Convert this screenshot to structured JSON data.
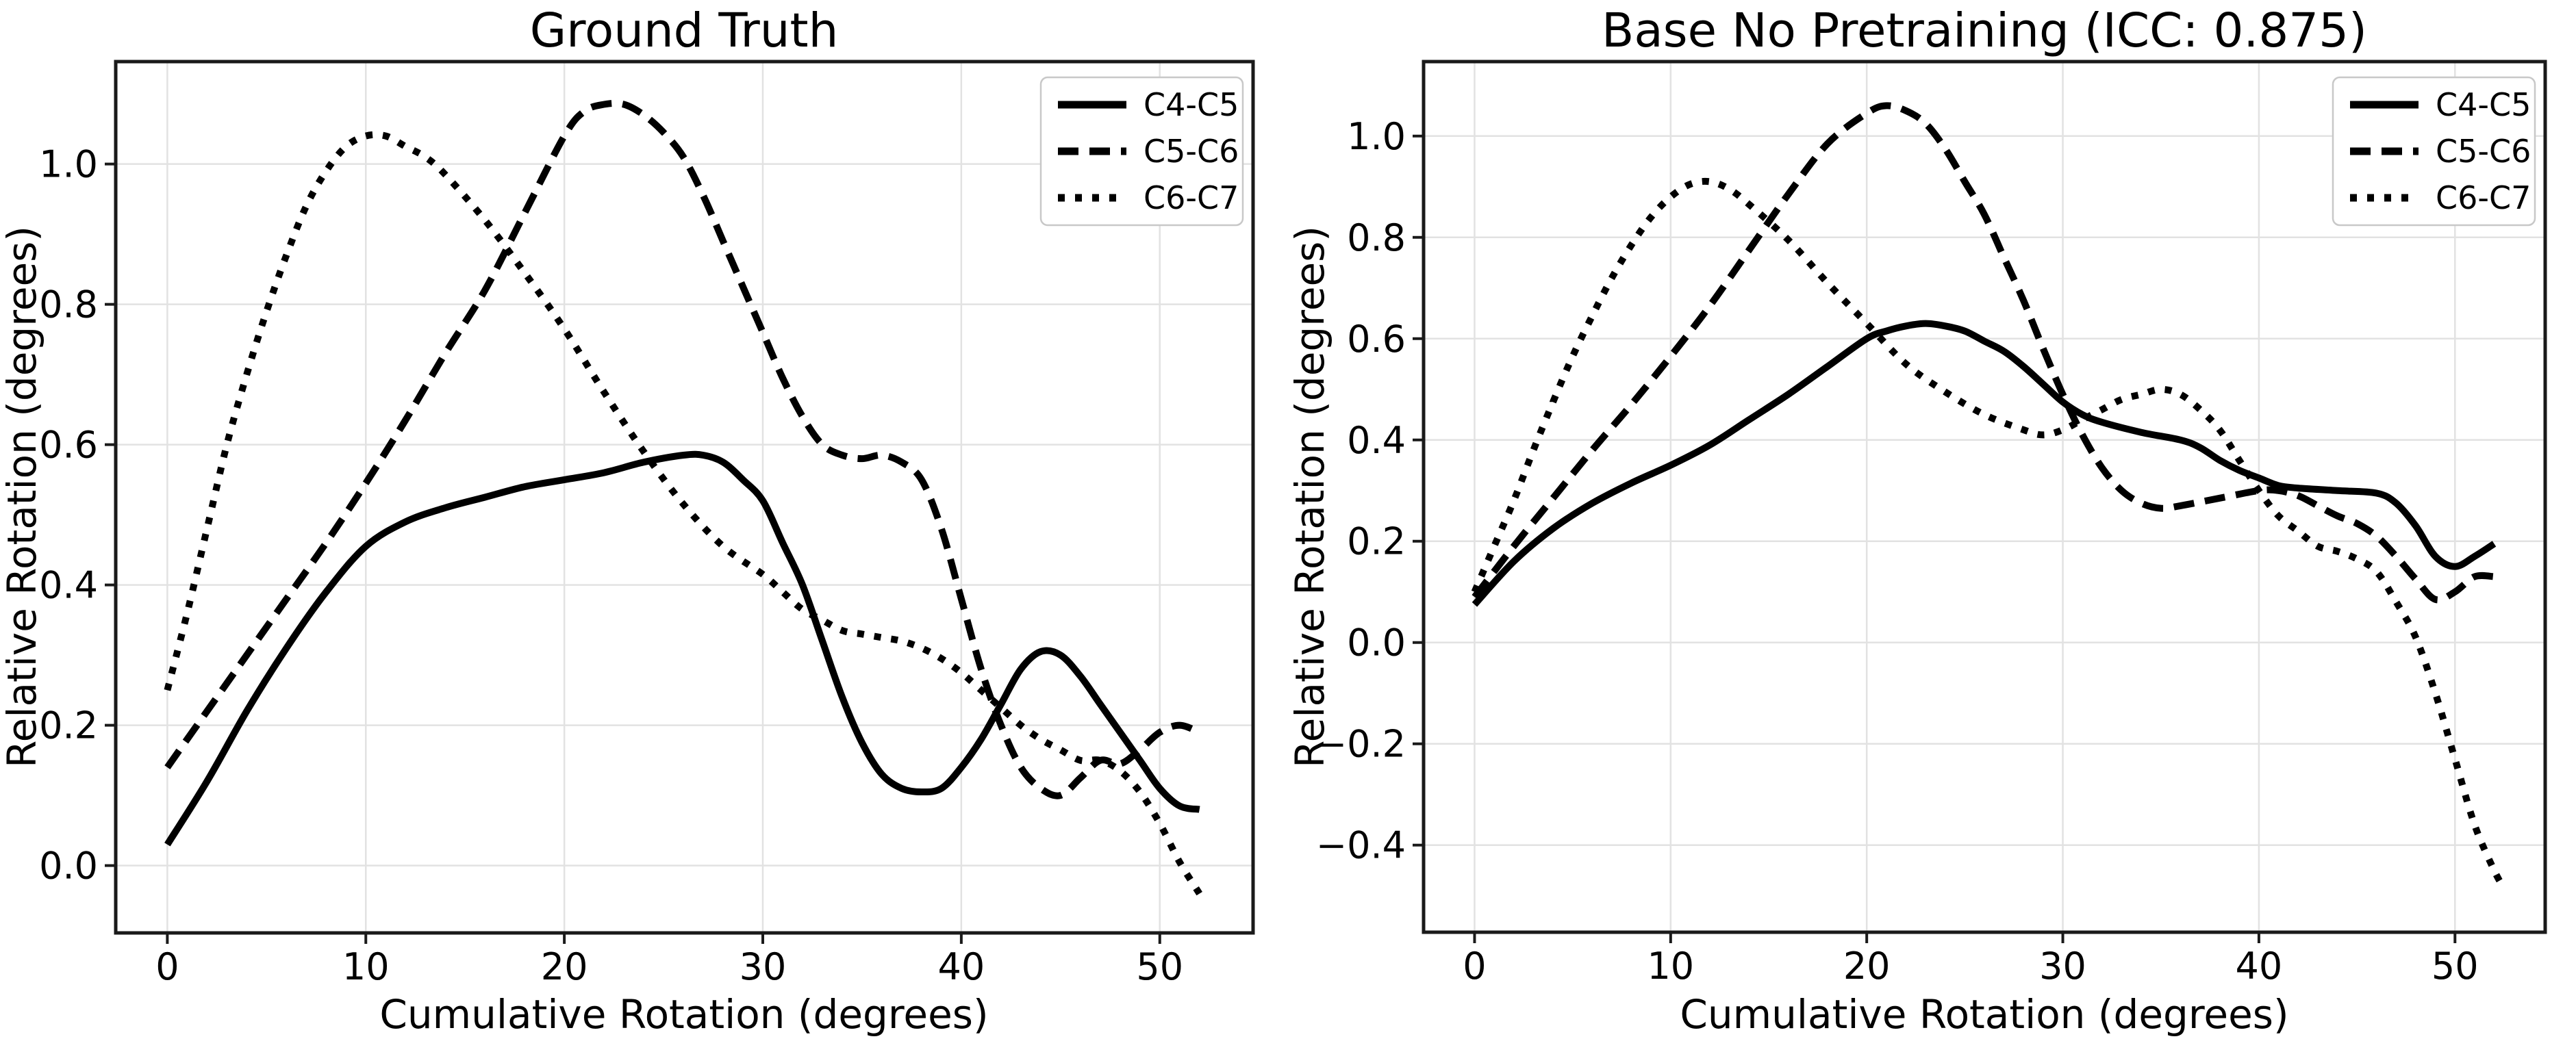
{
  "figure": {
    "background": "#ffffff",
    "text_color": "#000000",
    "grid_color": "#e2e2e2",
    "spine_color": "#1a1a1a",
    "line_color": "#000000"
  },
  "chart_data": [
    {
      "type": "line",
      "title": "Ground Truth",
      "xlabel": "Cumulative Rotation (degrees)",
      "ylabel": "Relative Rotation (degrees)",
      "xlim": [
        -2.6,
        54.7
      ],
      "ylim": [
        -0.096,
        1.146
      ],
      "xticks": [
        0,
        10,
        20,
        30,
        40,
        50
      ],
      "yticks": [
        0.0,
        0.2,
        0.4,
        0.6,
        0.8,
        1.0
      ],
      "grid": true,
      "legend_position": "upper right",
      "series": [
        {
          "name": "C4-C5",
          "linestyle": "solid",
          "points": [
            [
              0,
              0.03
            ],
            [
              2,
              0.12
            ],
            [
              4,
              0.22
            ],
            [
              6,
              0.31
            ],
            [
              8,
              0.39
            ],
            [
              10,
              0.455
            ],
            [
              12,
              0.49
            ],
            [
              14,
              0.51
            ],
            [
              16,
              0.525
            ],
            [
              18,
              0.54
            ],
            [
              20,
              0.55
            ],
            [
              22,
              0.56
            ],
            [
              24,
              0.575
            ],
            [
              26,
              0.585
            ],
            [
              27,
              0.585
            ],
            [
              28,
              0.575
            ],
            [
              29,
              0.55
            ],
            [
              30,
              0.52
            ],
            [
              31,
              0.46
            ],
            [
              32,
              0.4
            ],
            [
              33,
              0.32
            ],
            [
              34,
              0.24
            ],
            [
              35,
              0.175
            ],
            [
              36,
              0.13
            ],
            [
              37,
              0.11
            ],
            [
              38,
              0.105
            ],
            [
              39,
              0.11
            ],
            [
              40,
              0.14
            ],
            [
              41,
              0.18
            ],
            [
              42,
              0.23
            ],
            [
              43,
              0.28
            ],
            [
              44,
              0.305
            ],
            [
              45,
              0.3
            ],
            [
              46,
              0.27
            ],
            [
              47,
              0.23
            ],
            [
              48,
              0.19
            ],
            [
              49,
              0.15
            ],
            [
              50,
              0.11
            ],
            [
              51,
              0.085
            ],
            [
              52,
              0.08
            ]
          ]
        },
        {
          "name": "C5-C6",
          "linestyle": "dashed",
          "points": [
            [
              0,
              0.14
            ],
            [
              2,
              0.22
            ],
            [
              4,
              0.3
            ],
            [
              6,
              0.38
            ],
            [
              8,
              0.46
            ],
            [
              10,
              0.545
            ],
            [
              12,
              0.635
            ],
            [
              14,
              0.73
            ],
            [
              16,
              0.82
            ],
            [
              18,
              0.93
            ],
            [
              20,
              1.04
            ],
            [
              21,
              1.075
            ],
            [
              22,
              1.085
            ],
            [
              23,
              1.085
            ],
            [
              24,
              1.07
            ],
            [
              25,
              1.045
            ],
            [
              26,
              1.01
            ],
            [
              27,
              0.955
            ],
            [
              28,
              0.89
            ],
            [
              29,
              0.825
            ],
            [
              30,
              0.76
            ],
            [
              31,
              0.695
            ],
            [
              32,
              0.64
            ],
            [
              33,
              0.6
            ],
            [
              34,
              0.585
            ],
            [
              35,
              0.58
            ],
            [
              36,
              0.585
            ],
            [
              37,
              0.575
            ],
            [
              38,
              0.55
            ],
            [
              39,
              0.48
            ],
            [
              40,
              0.38
            ],
            [
              41,
              0.28
            ],
            [
              42,
              0.2
            ],
            [
              43,
              0.14
            ],
            [
              44,
              0.11
            ],
            [
              45,
              0.1
            ],
            [
              46,
              0.125
            ],
            [
              47,
              0.15
            ],
            [
              48,
              0.145
            ],
            [
              49,
              0.165
            ],
            [
              50,
              0.19
            ],
            [
              51,
              0.2
            ],
            [
              52,
              0.19
            ]
          ]
        },
        {
          "name": "C6-C7",
          "linestyle": "dotted",
          "points": [
            [
              0,
              0.25
            ],
            [
              1,
              0.36
            ],
            [
              2,
              0.48
            ],
            [
              3,
              0.6
            ],
            [
              4,
              0.7
            ],
            [
              5,
              0.79
            ],
            [
              6,
              0.87
            ],
            [
              7,
              0.94
            ],
            [
              8,
              0.99
            ],
            [
              9,
              1.025
            ],
            [
              10,
              1.04
            ],
            [
              11,
              1.04
            ],
            [
              12,
              1.025
            ],
            [
              13,
              1.01
            ],
            [
              14,
              0.985
            ],
            [
              16,
              0.92
            ],
            [
              18,
              0.845
            ],
            [
              20,
              0.765
            ],
            [
              22,
              0.675
            ],
            [
              24,
              0.59
            ],
            [
              26,
              0.515
            ],
            [
              28,
              0.455
            ],
            [
              30,
              0.415
            ],
            [
              31,
              0.39
            ],
            [
              32,
              0.365
            ],
            [
              33,
              0.35
            ],
            [
              34,
              0.335
            ],
            [
              35,
              0.33
            ],
            [
              36,
              0.325
            ],
            [
              37,
              0.32
            ],
            [
              38,
              0.31
            ],
            [
              39,
              0.295
            ],
            [
              40,
              0.275
            ],
            [
              41,
              0.25
            ],
            [
              42,
              0.225
            ],
            [
              43,
              0.2
            ],
            [
              44,
              0.18
            ],
            [
              45,
              0.165
            ],
            [
              46,
              0.15
            ],
            [
              47,
              0.15
            ],
            [
              48,
              0.135
            ],
            [
              49,
              0.105
            ],
            [
              50,
              0.06
            ],
            [
              51,
              0.005
            ],
            [
              52,
              -0.04
            ]
          ]
        }
      ]
    },
    {
      "type": "line",
      "title": "Base No Pretraining (ICC: 0.875)",
      "xlabel": "Cumulative Rotation (degrees)",
      "ylabel": "Relative Rotation (degrees)",
      "xlim": [
        -2.6,
        54.6
      ],
      "ylim": [
        -0.572,
        1.147
      ],
      "xticks": [
        0,
        10,
        20,
        30,
        40,
        50
      ],
      "yticks": [
        -0.4,
        -0.2,
        0.0,
        0.2,
        0.4,
        0.6,
        0.8,
        1.0
      ],
      "grid": true,
      "legend_position": "upper right",
      "series": [
        {
          "name": "C4-C5",
          "linestyle": "solid",
          "points": [
            [
              0,
              0.075
            ],
            [
              2,
              0.16
            ],
            [
              4,
              0.225
            ],
            [
              6,
              0.275
            ],
            [
              8,
              0.315
            ],
            [
              10,
              0.35
            ],
            [
              12,
              0.39
            ],
            [
              14,
              0.44
            ],
            [
              16,
              0.49
            ],
            [
              18,
              0.545
            ],
            [
              20,
              0.6
            ],
            [
              21,
              0.615
            ],
            [
              22,
              0.625
            ],
            [
              23,
              0.63
            ],
            [
              24,
              0.625
            ],
            [
              25,
              0.615
            ],
            [
              26,
              0.595
            ],
            [
              27,
              0.575
            ],
            [
              28,
              0.545
            ],
            [
              29,
              0.51
            ],
            [
              30,
              0.475
            ],
            [
              31,
              0.45
            ],
            [
              32,
              0.435
            ],
            [
              34,
              0.415
            ],
            [
              36,
              0.4
            ],
            [
              37,
              0.385
            ],
            [
              38,
              0.36
            ],
            [
              39,
              0.34
            ],
            [
              40,
              0.325
            ],
            [
              41,
              0.31
            ],
            [
              42,
              0.305
            ],
            [
              44,
              0.3
            ],
            [
              46,
              0.295
            ],
            [
              47,
              0.275
            ],
            [
              48,
              0.23
            ],
            [
              49,
              0.17
            ],
            [
              50,
              0.15
            ],
            [
              51,
              0.17
            ],
            [
              52,
              0.195
            ]
          ]
        },
        {
          "name": "C5-C6",
          "linestyle": "dashed",
          "points": [
            [
              0,
              0.09
            ],
            [
              2,
              0.19
            ],
            [
              4,
              0.285
            ],
            [
              6,
              0.38
            ],
            [
              8,
              0.47
            ],
            [
              10,
              0.565
            ],
            [
              12,
              0.665
            ],
            [
              14,
              0.775
            ],
            [
              16,
              0.885
            ],
            [
              18,
              0.985
            ],
            [
              20,
              1.045
            ],
            [
              21,
              1.06
            ],
            [
              22,
              1.05
            ],
            [
              23,
              1.025
            ],
            [
              24,
              0.975
            ],
            [
              25,
              0.91
            ],
            [
              26,
              0.845
            ],
            [
              27,
              0.76
            ],
            [
              28,
              0.675
            ],
            [
              29,
              0.58
            ],
            [
              30,
              0.49
            ],
            [
              31,
              0.41
            ],
            [
              32,
              0.345
            ],
            [
              33,
              0.3
            ],
            [
              34,
              0.275
            ],
            [
              35,
              0.265
            ],
            [
              36,
              0.27
            ],
            [
              38,
              0.285
            ],
            [
              40,
              0.3
            ],
            [
              41,
              0.3
            ],
            [
              42,
              0.29
            ],
            [
              43,
              0.27
            ],
            [
              44,
              0.25
            ],
            [
              45,
              0.235
            ],
            [
              46,
              0.21
            ],
            [
              47,
              0.17
            ],
            [
              48,
              0.125
            ],
            [
              49,
              0.085
            ],
            [
              50,
              0.1
            ],
            [
              51,
              0.13
            ],
            [
              52,
              0.13
            ]
          ]
        },
        {
          "name": "C6-C7",
          "linestyle": "dotted",
          "points": [
            [
              0,
              0.1
            ],
            [
              1,
              0.19
            ],
            [
              2,
              0.28
            ],
            [
              3,
              0.38
            ],
            [
              4,
              0.475
            ],
            [
              5,
              0.565
            ],
            [
              6,
              0.645
            ],
            [
              7,
              0.72
            ],
            [
              8,
              0.785
            ],
            [
              9,
              0.84
            ],
            [
              10,
              0.88
            ],
            [
              11,
              0.905
            ],
            [
              12,
              0.91
            ],
            [
              13,
              0.895
            ],
            [
              14,
              0.865
            ],
            [
              16,
              0.795
            ],
            [
              18,
              0.71
            ],
            [
              20,
              0.63
            ],
            [
              22,
              0.55
            ],
            [
              24,
              0.495
            ],
            [
              26,
              0.45
            ],
            [
              28,
              0.42
            ],
            [
              29,
              0.41
            ],
            [
              30,
              0.42
            ],
            [
              31,
              0.44
            ],
            [
              32,
              0.46
            ],
            [
              33,
              0.48
            ],
            [
              34,
              0.49
            ],
            [
              35,
              0.5
            ],
            [
              36,
              0.49
            ],
            [
              37,
              0.46
            ],
            [
              38,
              0.42
            ],
            [
              39,
              0.36
            ],
            [
              40,
              0.3
            ],
            [
              41,
              0.25
            ],
            [
              42,
              0.22
            ],
            [
              43,
              0.19
            ],
            [
              44,
              0.18
            ],
            [
              45,
              0.165
            ],
            [
              46,
              0.14
            ],
            [
              47,
              0.08
            ],
            [
              48,
              0.01
            ],
            [
              49,
              -0.1
            ],
            [
              50,
              -0.23
            ],
            [
              51,
              -0.36
            ],
            [
              52,
              -0.45
            ],
            [
              52.5,
              -0.485
            ]
          ]
        }
      ]
    }
  ]
}
